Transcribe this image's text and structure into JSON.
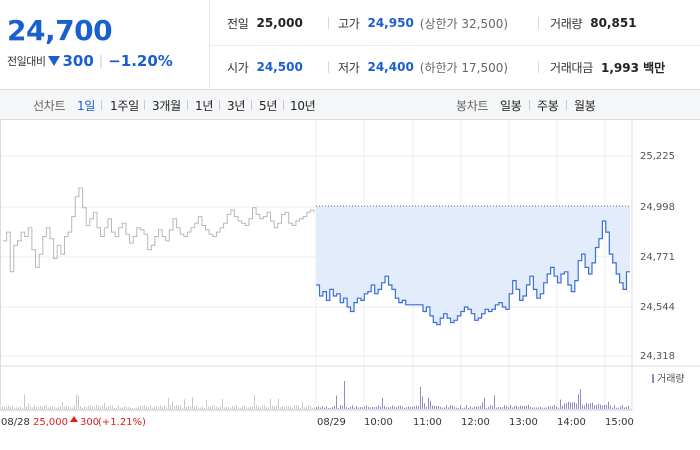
{
  "summary": {
    "current_price": "24,700",
    "change_label": "전일대비",
    "change_amount": "300",
    "change_rate": "−1.20%"
  },
  "stats": {
    "prev_close": {
      "label": "전일",
      "value": "25,000"
    },
    "high": {
      "label": "고가",
      "value": "24,950",
      "sub": "(상한가 32,500)"
    },
    "volume": {
      "label": "거래량",
      "value": "80,851"
    },
    "open": {
      "label": "시가",
      "value": "24,500"
    },
    "low": {
      "label": "저가",
      "value": "24,400",
      "sub": "(하한가 17,500)"
    },
    "trade_amount": {
      "label": "거래대금",
      "value": "1,993 백만"
    }
  },
  "toolbar": {
    "line_chart_label": "선차트",
    "periods": [
      "1일",
      "1주일",
      "3개월",
      "1년",
      "3년",
      "5년",
      "10년"
    ],
    "active_period": "1일",
    "candle_chart_label": "봉차트",
    "candle_periods": [
      "일봉",
      "주봉",
      "월봉"
    ]
  },
  "chart_data": {
    "type": "line",
    "y_ticks": [
      "25,225",
      "24,998",
      "24,771",
      "24,544",
      "24,318"
    ],
    "ylim": [
      24318,
      25225
    ],
    "volume_label": "거래량",
    "prev_day": {
      "date": "08/28",
      "close_label": "25,000",
      "change_label": "300",
      "change_rate": "(+1.21%)"
    },
    "today_label": "08/29",
    "x_ticks": [
      "10:00",
      "11:00",
      "12:00",
      "13:00",
      "14:00",
      "15:00"
    ],
    "prev_close_value": 24998,
    "colors": {
      "prev_day_line": "#b8b8b8",
      "today_line": "#3a6fd8",
      "fill": "#e3ecfa",
      "up": "#e02020",
      "volume_bar": "#9b86c4"
    },
    "series": [
      {
        "values": [
          24840,
          24880,
          24700,
          24820,
          24840,
          24880,
          24860,
          24900,
          24800,
          24720,
          24780,
          24860,
          24900,
          24850,
          24760,
          24820,
          24780,
          24860,
          24880,
          24950,
          25040,
          25080,
          24990,
          24910,
          24940,
          24970,
          24900,
          24860,
          24900,
          24940,
          24880,
          24860,
          24900,
          24920,
          24870,
          24830,
          24860,
          24900,
          24890,
          24870,
          24800,
          24820,
          24860,
          24890,
          24860,
          24840,
          24890,
          24940,
          24900,
          24870,
          24860,
          24880,
          24900,
          24920,
          24950,
          24910,
          24890,
          24870,
          24860,
          24880,
          24900,
          24920,
          24960,
          24980,
          24950,
          24930,
          24920,
          24910,
          24940,
          24990,
          24960,
          24940,
          24950,
          24970,
          24930,
          24900,
          24920,
          24960,
          24970,
          24920,
          24910,
          24930,
          24940,
          24950,
          24970,
          24980,
          24970
        ]
      },
      {
        "values": [
          24640,
          24590,
          24610,
          24570,
          24620,
          24590,
          24600,
          24560,
          24580,
          24540,
          24520,
          24560,
          24580,
          24570,
          24600,
          24610,
          24640,
          24600,
          24620,
          24650,
          24680,
          24640,
          24620,
          24580,
          24560,
          24570,
          24550,
          24550,
          24550,
          24550,
          24550,
          24520,
          24540,
          24500,
          24470,
          24460,
          24490,
          24510,
          24490,
          24470,
          24480,
          24500,
          24520,
          24540,
          24530,
          24510,
          24480,
          24490,
          24510,
          24530,
          24520,
          24530,
          24550,
          24560,
          24540,
          24530,
          24600,
          24660,
          24620,
          24570,
          24590,
          24640,
          24680,
          24620,
          24580,
          24600,
          24650,
          24690,
          24720,
          24680,
          24650,
          24690,
          24700,
          24640,
          24610,
          24660,
          24750,
          24780,
          24720,
          24690,
          24740,
          24810,
          24850,
          24930,
          24880,
          24780,
          24740,
          24690,
          24650,
          24620,
          24700,
          24700
        ]
      }
    ]
  }
}
